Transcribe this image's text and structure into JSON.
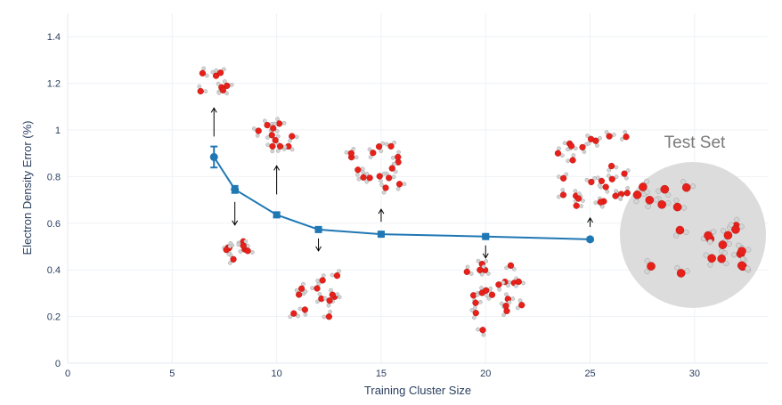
{
  "chart_data": {
    "type": "line",
    "xlabel": "Training Cluster Size",
    "ylabel": "Electron Density Error (%)",
    "xlim": [
      0,
      33.5
    ],
    "ylim": [
      0,
      1.5
    ],
    "xticks": [
      0,
      5,
      10,
      15,
      20,
      25,
      30
    ],
    "yticks": [
      0,
      0.2,
      0.4,
      0.6,
      0.8,
      1,
      1.2,
      1.4
    ],
    "xtick_labels": [
      "0",
      "5",
      "10",
      "15",
      "20",
      "25",
      "30"
    ],
    "ytick_labels": [
      "0",
      "0.2",
      "0.4",
      "0.6",
      "0.8",
      "1",
      "1.2",
      "1.4"
    ],
    "grid": true,
    "series": [
      {
        "color": "#1f77b4",
        "x": [
          7,
          8,
          10,
          12,
          15,
          20,
          25
        ],
        "y": [
          0.884,
          0.745,
          0.636,
          0.573,
          0.553,
          0.543,
          0.531
        ],
        "error": [
          0.045,
          0.015,
          0.01,
          0.008,
          0.006,
          0.006,
          0.006
        ],
        "markers": [
          "circle",
          "circle",
          "square",
          "square",
          "square",
          "square",
          "circle"
        ]
      }
    ],
    "annotations": {
      "test_set_label": "Test Set",
      "arrows": [
        {
          "x": 7,
          "direction": "up"
        },
        {
          "x": 8,
          "direction": "down"
        },
        {
          "x": 10,
          "direction": "up"
        },
        {
          "x": 12,
          "direction": "down"
        },
        {
          "x": 15,
          "direction": "up"
        },
        {
          "x": 20,
          "direction": "down"
        },
        {
          "x": 25,
          "direction": "up"
        }
      ],
      "cluster_images": [
        "water-cluster-7",
        "water-cluster-8",
        "water-cluster-10",
        "water-cluster-12",
        "water-cluster-15",
        "water-cluster-20",
        "water-cluster-25",
        "water-cluster-test-set"
      ]
    },
    "colors": {
      "line": "#1f77b4",
      "oxygen": "#e8201a",
      "hydrogen": "#cfcfcf",
      "test_circle": "#dcdcdc",
      "grid": "#eef1f6",
      "text": "#2a3f5f"
    }
  }
}
